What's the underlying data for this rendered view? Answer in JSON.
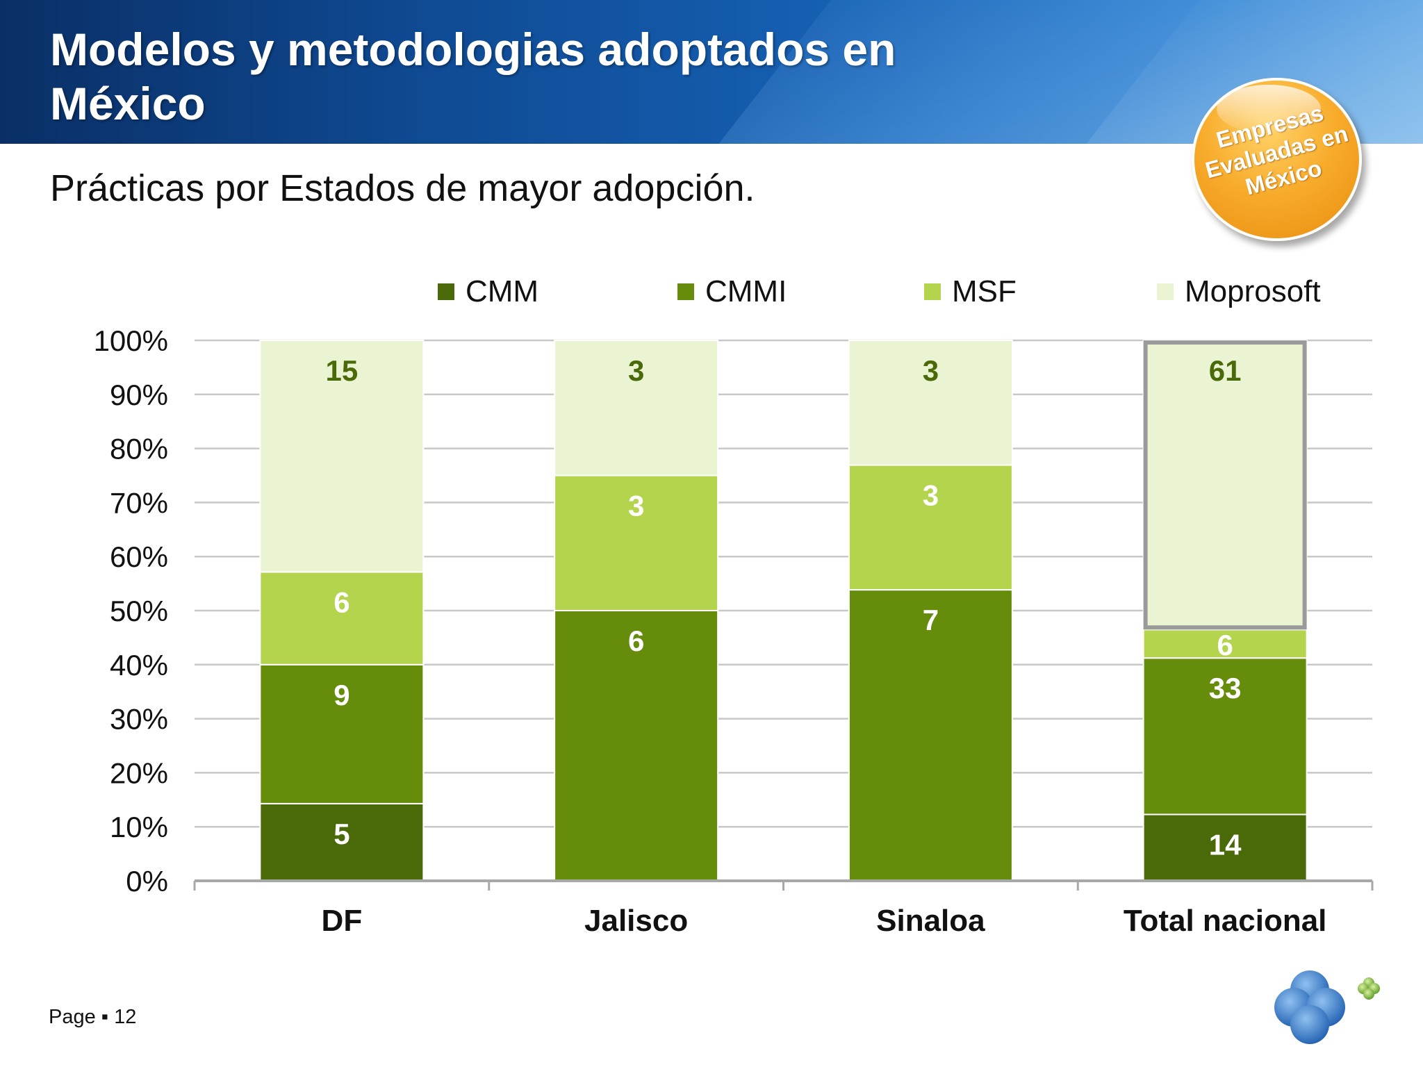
{
  "slide": {
    "title": "Modelos y metodologias adoptados en México",
    "subtitle": "Prácticas por Estados de mayor adopción.",
    "badge": [
      "Empresas",
      "Evaluadas en",
      "México"
    ],
    "footer": {
      "page_label": "Page",
      "separator": "▪",
      "page_number": "12"
    },
    "colors": {
      "header": "#0f4a93",
      "badge": "#f8ac2c"
    }
  },
  "chart_data": {
    "type": "bar",
    "stacked": "percent",
    "categories": [
      "DF",
      "Jalisco",
      "Sinaloa",
      "Total nacional"
    ],
    "series": [
      {
        "name": "CMM",
        "color": "#4a6a0a",
        "label_color": "#ffffff",
        "values": [
          5,
          0,
          0,
          14
        ]
      },
      {
        "name": "CMMI",
        "color": "#668c0c",
        "label_color": "#ffffff",
        "values": [
          9,
          6,
          7,
          33
        ]
      },
      {
        "name": "MSF",
        "color": "#b4d44e",
        "label_color": "#ffffff",
        "values": [
          6,
          3,
          3,
          6
        ]
      },
      {
        "name": "Moprosoft",
        "color": "#eaf4d2",
        "label_color": "#4a6a0a",
        "values": [
          15,
          3,
          3,
          61
        ]
      }
    ],
    "yticks": [
      "0%",
      "10%",
      "20%",
      "30%",
      "40%",
      "50%",
      "60%",
      "70%",
      "80%",
      "90%",
      "100%"
    ],
    "ylim": [
      0,
      100
    ],
    "grid": true,
    "legend": "top",
    "highlight": {
      "category": "Total nacional",
      "series": "Moprosoft"
    }
  }
}
